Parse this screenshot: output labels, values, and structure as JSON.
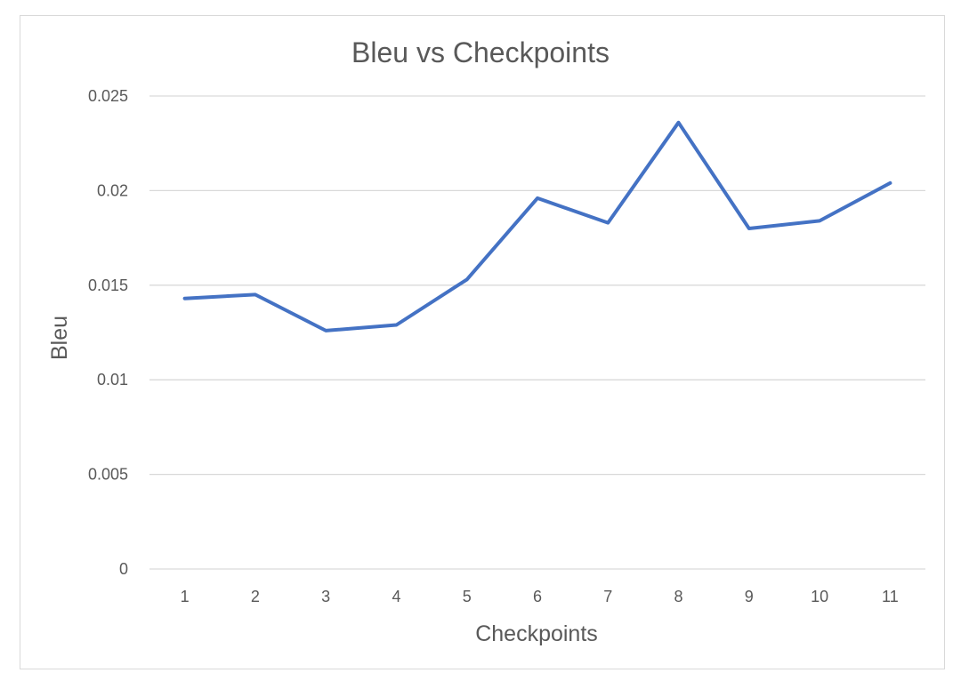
{
  "chart_data": {
    "type": "line",
    "title": "Bleu vs Checkpoints",
    "xlabel": "Checkpoints",
    "ylabel": "Bleu",
    "categories": [
      "1",
      "2",
      "3",
      "4",
      "5",
      "6",
      "7",
      "8",
      "9",
      "10",
      "11"
    ],
    "series": [
      {
        "values": [
          0.0143,
          0.0145,
          0.0126,
          0.0129,
          0.0153,
          0.0196,
          0.0183,
          0.0236,
          0.018,
          0.0184,
          0.0204
        ],
        "color": "#4472c4"
      }
    ],
    "ylim": [
      0,
      0.025
    ],
    "yticks": [
      "0",
      "0.005",
      "0.01",
      "0.015",
      "0.02",
      "0.025"
    ],
    "grid": true,
    "legend": "none"
  }
}
